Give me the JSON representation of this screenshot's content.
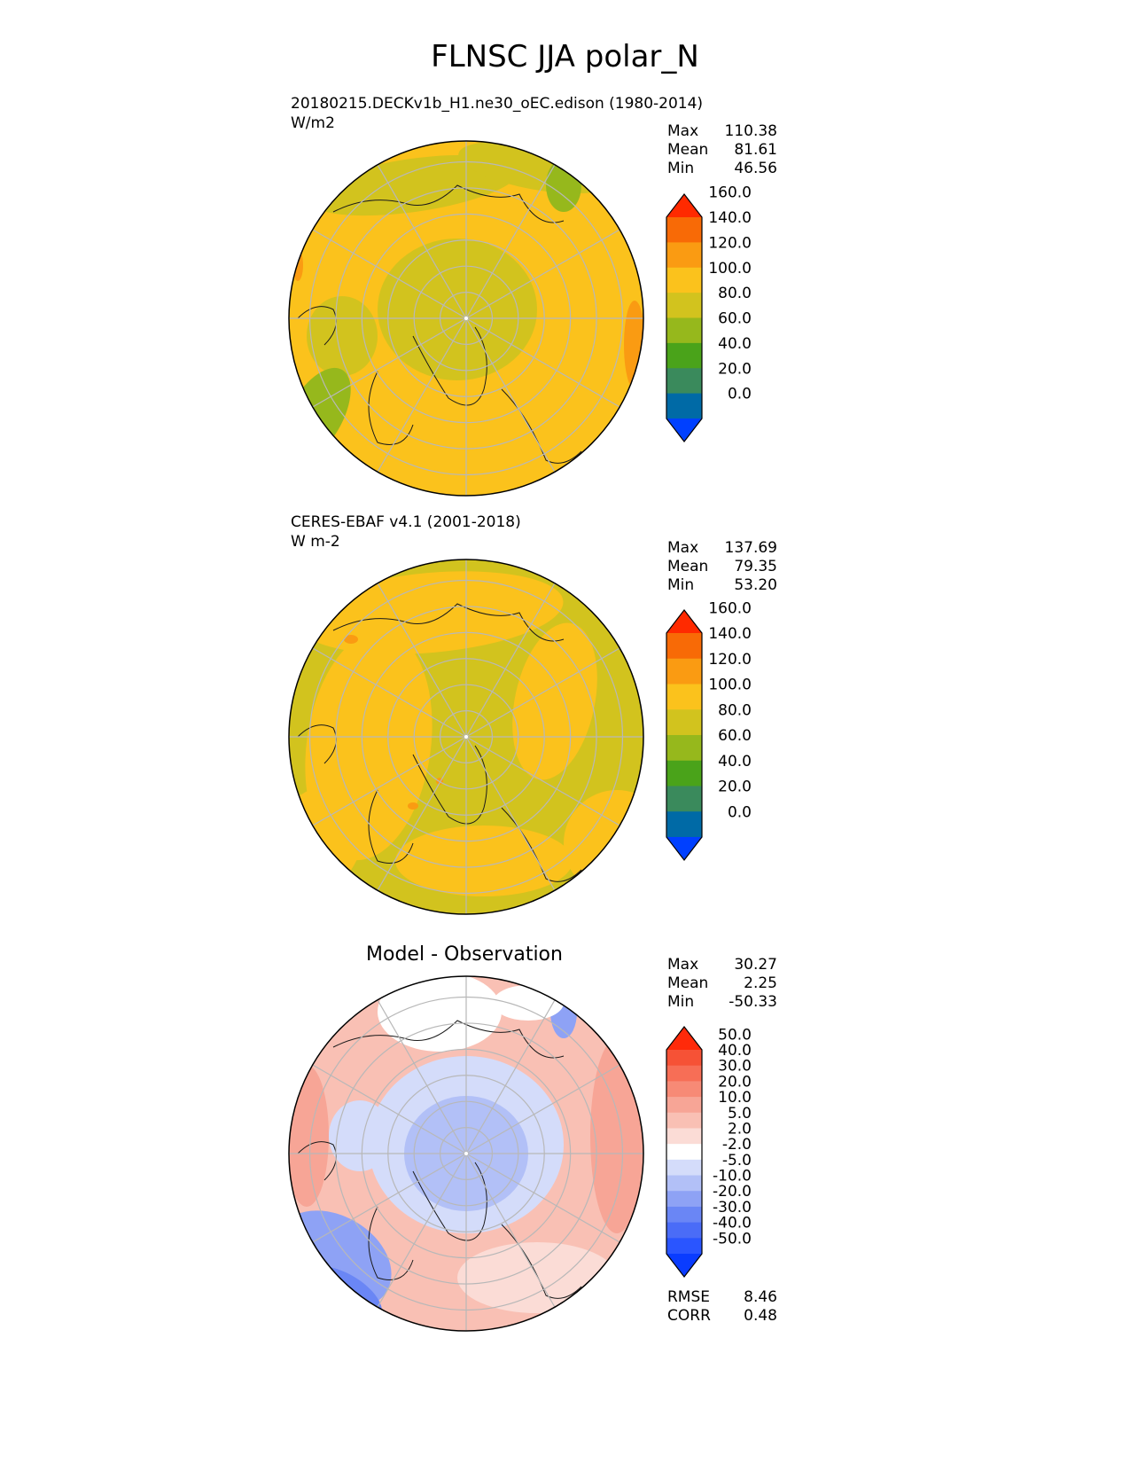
{
  "title": "FLNSC JJA polar_N",
  "panels": [
    {
      "name": "model",
      "heading": "20180215.DECKv1b_H1.ne30_oEC.edison (1980-2014)",
      "units": "W/m2",
      "stats": [
        {
          "label": "Max",
          "value": "110.38"
        },
        {
          "label": "Mean",
          "value": "81.61"
        },
        {
          "label": "Min",
          "value": "46.56"
        }
      ]
    },
    {
      "name": "observation",
      "heading": "CERES-EBAF v4.1 (2001-2018)",
      "units": "W m-2",
      "stats": [
        {
          "label": "Max",
          "value": "137.69"
        },
        {
          "label": "Mean",
          "value": "79.35"
        },
        {
          "label": "Min",
          "value": "53.20"
        }
      ]
    },
    {
      "name": "difference",
      "heading": "Model - Observation",
      "stats": [
        {
          "label": "Max",
          "value": "30.27"
        },
        {
          "label": "Mean",
          "value": "2.25"
        },
        {
          "label": "Min",
          "value": "-50.33"
        }
      ],
      "metrics": [
        {
          "label": "RMSE",
          "value": "8.46"
        },
        {
          "label": "CORR",
          "value": "0.48"
        }
      ]
    }
  ],
  "chart_data": [
    {
      "type": "heatmap",
      "projection": "north polar stereographic",
      "title": "20180215.DECKv1b_H1.ne30_oEC.edison (1980-2014)",
      "units": "W/m2",
      "colorbar": {
        "levels": [
          "0.0",
          "20.0",
          "40.0",
          "60.0",
          "80.0",
          "100.0",
          "120.0",
          "140.0",
          "160.0"
        ],
        "colors": [
          "#0040ff",
          "#006aa6",
          "#3a8a5c",
          "#4aa31a",
          "#96b81c",
          "#d2c31e",
          "#fbc21c",
          "#fa9b12",
          "#f86a06",
          "#ff2a00"
        ],
        "extend": "both"
      },
      "field_summary": {
        "max": 110.38,
        "mean": 81.61,
        "min": 46.56,
        "dominant_bins": [
          "60.0-80.0",
          "80.0-100.0"
        ]
      },
      "grid": true
    },
    {
      "type": "heatmap",
      "projection": "north polar stereographic",
      "title": "CERES-EBAF v4.1 (2001-2018)",
      "units": "W m-2",
      "colorbar": {
        "levels": [
          "0.0",
          "20.0",
          "40.0",
          "60.0",
          "80.0",
          "100.0",
          "120.0",
          "140.0",
          "160.0"
        ],
        "colors": [
          "#0040ff",
          "#006aa6",
          "#3a8a5c",
          "#4aa31a",
          "#96b81c",
          "#d2c31e",
          "#fbc21c",
          "#fa9b12",
          "#f86a06",
          "#ff2a00"
        ],
        "extend": "both"
      },
      "field_summary": {
        "max": 137.69,
        "mean": 79.35,
        "min": 53.2,
        "dominant_bins": [
          "60.0-80.0",
          "80.0-100.0"
        ]
      },
      "grid": true
    },
    {
      "type": "heatmap",
      "projection": "north polar stereographic",
      "title": "Model - Observation",
      "colorbar": {
        "levels": [
          "-50.0",
          "-40.0",
          "-30.0",
          "-20.0",
          "-10.0",
          "-5.0",
          "-2.0",
          "2.0",
          "5.0",
          "10.0",
          "20.0",
          "30.0",
          "40.0",
          "50.0"
        ],
        "colors": [
          "#0a3cff",
          "#2a55ff",
          "#4a6cf7",
          "#6a86f5",
          "#8ea2f5",
          "#b2c0f7",
          "#d4dcfa",
          "#ffffff",
          "#fbdcd6",
          "#f9c0b4",
          "#f7a596",
          "#f78a76",
          "#f76e56",
          "#f65236",
          "#ff2a0a"
        ],
        "extend": "both"
      },
      "field_summary": {
        "max": 30.27,
        "mean": 2.25,
        "min": -50.33,
        "rmse": 8.46,
        "corr": 0.48
      },
      "grid": true
    }
  ]
}
